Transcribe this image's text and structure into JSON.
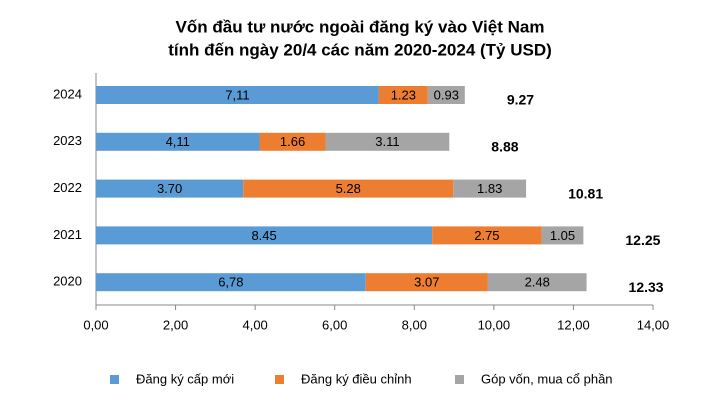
{
  "chart_data": {
    "type": "stacked-bar-horizontal",
    "title": "Vốn đầu tư nước ngoài đăng ký vào Việt Nam",
    "subtitle": "tính đến ngày 20/4 các năm 2020-2024 (Tỷ USD)",
    "categories": [
      "2024",
      "2023",
      "2022",
      "2021",
      "2020"
    ],
    "series": [
      {
        "name": "Đăng ký cấp mới",
        "color": "#5b9bd5",
        "values": [
          7.11,
          4.11,
          3.7,
          8.45,
          6.78
        ],
        "value_labels": [
          "7,11",
          "4,11",
          "3.70",
          "8.45",
          "6,78"
        ]
      },
      {
        "name": "Đăng ký điều chỉnh",
        "color": "#ed7d31",
        "values": [
          1.23,
          1.66,
          5.28,
          2.75,
          3.07
        ],
        "value_labels": [
          "1.23",
          "1.66",
          "5.28",
          "2.75",
          "3.07"
        ]
      },
      {
        "name": "Góp vốn, mua cổ phần",
        "color": "#a5a5a5",
        "values": [
          0.93,
          3.11,
          1.83,
          1.05,
          2.48
        ],
        "value_labels": [
          "0.93",
          "3.11",
          "1.83",
          "1.05",
          "2.48"
        ]
      }
    ],
    "totals": [
      9.27,
      8.88,
      10.81,
      12.25,
      12.33
    ],
    "xlim": [
      0,
      14
    ],
    "xticks": [
      {
        "value": 0,
        "label": "0,00"
      },
      {
        "value": 2,
        "label": "2,00"
      },
      {
        "value": 4,
        "label": "4,00"
      },
      {
        "value": 6,
        "label": "6,00"
      },
      {
        "value": 8,
        "label": "8,00"
      },
      {
        "value": 10,
        "label": "10,00"
      },
      {
        "value": 12,
        "label": "12,00"
      },
      {
        "value": 14,
        "label": "14,00"
      }
    ],
    "legend": "bottom"
  }
}
